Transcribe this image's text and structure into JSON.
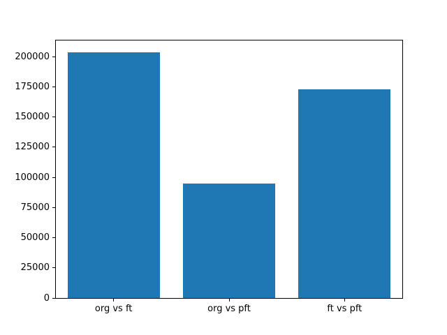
{
  "chart_data": {
    "type": "bar",
    "categories": [
      "org vs ft",
      "org vs pft",
      "ft vs pft"
    ],
    "values": [
      203500,
      95000,
      173000
    ],
    "yticks": [
      0,
      25000,
      50000,
      75000,
      100000,
      125000,
      150000,
      175000,
      200000
    ],
    "ytick_labels": [
      "0",
      "25000",
      "50000",
      "75000",
      "100000",
      "125000",
      "150000",
      "175000",
      "200000"
    ],
    "ylim": [
      0,
      213300
    ],
    "bar_color": "#1f77b4",
    "bar_width_fraction": 0.8,
    "grid": false,
    "legend": null,
    "spine_color": "#000000",
    "background_color": "#ffffff"
  }
}
